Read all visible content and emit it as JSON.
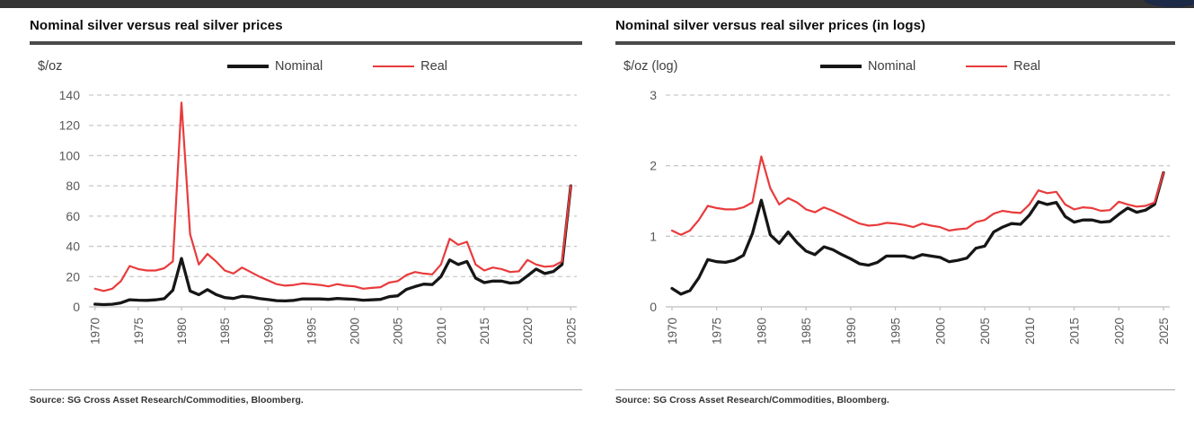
{
  "top_bar": {
    "color": "#343434",
    "accent_color": "#1c2947"
  },
  "charts": [
    {
      "title": "Nominal silver versus real silver prices",
      "unit_label": "$/oz",
      "legend": [
        "Nominal",
        "Real"
      ],
      "source": "Source: SG Cross Asset Research/Commodities, Bloomberg."
    },
    {
      "title": "Nominal silver versus real silver prices (in logs)",
      "unit_label": "$/oz (log)",
      "legend": [
        "Nominal",
        "Real"
      ],
      "source": "Source: SG Cross Asset Research/Commodities, Bloomberg."
    }
  ],
  "chart_data": [
    {
      "type": "line",
      "title": "Nominal silver versus real silver prices",
      "ylabel": "$/oz",
      "xlabel": "",
      "grid": "dashed-horizontal",
      "legend_position": "top",
      "ylim": [
        0,
        140
      ],
      "yticks": [
        0,
        20,
        40,
        60,
        80,
        100,
        120,
        140
      ],
      "xlim": [
        1969.3,
        2025.7
      ],
      "xticks": [
        1970,
        1975,
        1980,
        1985,
        1990,
        1995,
        2000,
        2005,
        2010,
        2015,
        2020,
        2025
      ],
      "years": [
        1970,
        1971,
        1972,
        1973,
        1974,
        1975,
        1976,
        1977,
        1978,
        1979,
        1980,
        1981,
        1982,
        1983,
        1984,
        1985,
        1986,
        1987,
        1988,
        1989,
        1990,
        1991,
        1992,
        1993,
        1994,
        1995,
        1996,
        1997,
        1998,
        1999,
        2000,
        2001,
        2002,
        2003,
        2004,
        2005,
        2006,
        2007,
        2008,
        2009,
        2010,
        2011,
        2012,
        2013,
        2014,
        2015,
        2016,
        2017,
        2018,
        2019,
        2020,
        2021,
        2022,
        2023,
        2024,
        2025
      ],
      "series": [
        {
          "name": "Nominal",
          "color": "#161616",
          "values": [
            1.8,
            1.5,
            1.7,
            2.6,
            4.7,
            4.4,
            4.3,
            4.6,
            5.4,
            11,
            32,
            10.5,
            8,
            11.4,
            8.1,
            6.1,
            5.5,
            7,
            6.5,
            5.5,
            4.8,
            4.1,
            3.9,
            4.3,
            5.3,
            5.2,
            5.2,
            4.9,
            5.5,
            5.2,
            5,
            4.4,
            4.6,
            4.9,
            6.7,
            7.3,
            11.5,
            13.4,
            15,
            14.7,
            20,
            31,
            28,
            30,
            19,
            16,
            17,
            17,
            15.7,
            16.2,
            20.5,
            25,
            22,
            23.4,
            28,
            80
          ]
        },
        {
          "name": "Real",
          "color": "#e93b3c",
          "values": [
            12,
            10.5,
            12,
            17,
            27,
            25,
            24,
            24,
            25.5,
            30,
            135,
            48,
            28,
            35,
            30,
            24,
            22,
            26,
            23,
            20,
            17.5,
            15,
            14,
            14.5,
            15.5,
            15,
            14.5,
            13.5,
            15,
            14,
            13.5,
            12,
            12.5,
            13,
            16,
            17,
            21,
            23,
            22,
            21.5,
            28,
            45,
            41,
            43,
            28,
            24,
            26,
            25,
            23,
            23.5,
            31,
            28,
            26.5,
            27,
            30,
            80
          ]
        }
      ]
    },
    {
      "type": "line",
      "title": "Nominal silver versus real silver prices (in logs)",
      "ylabel": "$/oz (log)",
      "xlabel": "",
      "grid": "dashed-horizontal",
      "legend_position": "top",
      "ylim": [
        0,
        3
      ],
      "yticks": [
        0,
        1,
        2,
        3
      ],
      "xlim": [
        1969.3,
        2025.7
      ],
      "xticks": [
        1970,
        1975,
        1980,
        1985,
        1990,
        1995,
        2000,
        2005,
        2010,
        2015,
        2020,
        2025
      ],
      "years": [
        1970,
        1971,
        1972,
        1973,
        1974,
        1975,
        1976,
        1977,
        1978,
        1979,
        1980,
        1981,
        1982,
        1983,
        1984,
        1985,
        1986,
        1987,
        1988,
        1989,
        1990,
        1991,
        1992,
        1993,
        1994,
        1995,
        1996,
        1997,
        1998,
        1999,
        2000,
        2001,
        2002,
        2003,
        2004,
        2005,
        2006,
        2007,
        2008,
        2009,
        2010,
        2011,
        2012,
        2013,
        2014,
        2015,
        2016,
        2017,
        2018,
        2019,
        2020,
        2021,
        2022,
        2023,
        2024,
        2025
      ],
      "series": [
        {
          "name": "Nominal",
          "color": "#161616",
          "values": [
            0.26,
            0.18,
            0.23,
            0.41,
            0.67,
            0.64,
            0.63,
            0.66,
            0.73,
            1.04,
            1.51,
            1.02,
            0.9,
            1.06,
            0.91,
            0.79,
            0.74,
            0.85,
            0.81,
            0.74,
            0.68,
            0.61,
            0.59,
            0.63,
            0.72,
            0.72,
            0.72,
            0.69,
            0.74,
            0.72,
            0.7,
            0.64,
            0.66,
            0.69,
            0.83,
            0.86,
            1.06,
            1.13,
            1.18,
            1.17,
            1.3,
            1.49,
            1.45,
            1.48,
            1.28,
            1.2,
            1.23,
            1.23,
            1.2,
            1.21,
            1.31,
            1.4,
            1.34,
            1.37,
            1.45,
            1.9
          ]
        },
        {
          "name": "Real",
          "color": "#e93b3c",
          "values": [
            1.08,
            1.02,
            1.08,
            1.23,
            1.43,
            1.4,
            1.38,
            1.38,
            1.41,
            1.48,
            2.13,
            1.68,
            1.45,
            1.54,
            1.48,
            1.38,
            1.34,
            1.41,
            1.36,
            1.3,
            1.24,
            1.18,
            1.15,
            1.16,
            1.19,
            1.18,
            1.16,
            1.13,
            1.18,
            1.15,
            1.13,
            1.08,
            1.1,
            1.11,
            1.2,
            1.23,
            1.32,
            1.36,
            1.34,
            1.33,
            1.45,
            1.65,
            1.61,
            1.63,
            1.45,
            1.38,
            1.41,
            1.4,
            1.36,
            1.37,
            1.49,
            1.45,
            1.42,
            1.43,
            1.48,
            1.9
          ]
        }
      ]
    }
  ]
}
